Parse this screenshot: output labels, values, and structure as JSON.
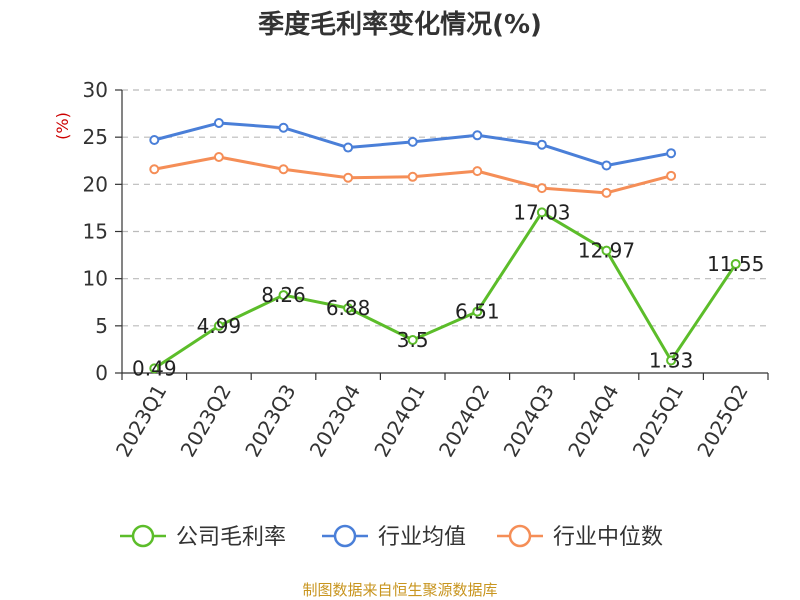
{
  "chart_data": {
    "type": "line",
    "title": "季度毛利率变化情况(%)",
    "ylabel": "(%)",
    "categories": [
      "2023Q1",
      "2023Q2",
      "2023Q3",
      "2023Q4",
      "2024Q1",
      "2024Q2",
      "2024Q3",
      "2024Q4",
      "2025Q1",
      "2025Q2"
    ],
    "ylim": [
      0,
      30
    ],
    "yticks": [
      0,
      5,
      10,
      15,
      20,
      25,
      30
    ],
    "ytick_labels": [
      "0",
      "5",
      "10",
      "15",
      "20",
      "25",
      "30"
    ],
    "grid": true,
    "legend_position": "bottom",
    "series": [
      {
        "name": "公司毛利率",
        "color": "#5cbd2a",
        "values": [
          0.49,
          4.99,
          8.26,
          6.88,
          3.5,
          6.51,
          17.03,
          12.97,
          1.33,
          11.55
        ],
        "labels": [
          "0.49",
          "4.99",
          "8.26",
          "6.88",
          "3.5",
          "6.51",
          "17.03",
          "12.97",
          "1.33",
          "11.55"
        ]
      },
      {
        "name": "行业均值",
        "color": "#4a7fd8",
        "values": [
          24.7,
          26.5,
          26.0,
          23.9,
          24.5,
          25.2,
          24.2,
          22.0,
          23.3,
          null
        ]
      },
      {
        "name": "行业中位数",
        "color": "#f58e57",
        "values": [
          21.6,
          22.9,
          21.6,
          20.7,
          20.8,
          21.4,
          19.6,
          19.1,
          20.9,
          null
        ]
      }
    ]
  },
  "source_text": "制图数据来自恒生聚源数据库",
  "colors": {
    "unit": "#cc0000",
    "source": "#c8951f",
    "grid": "#bbbbbb",
    "axis": "#333333"
  }
}
